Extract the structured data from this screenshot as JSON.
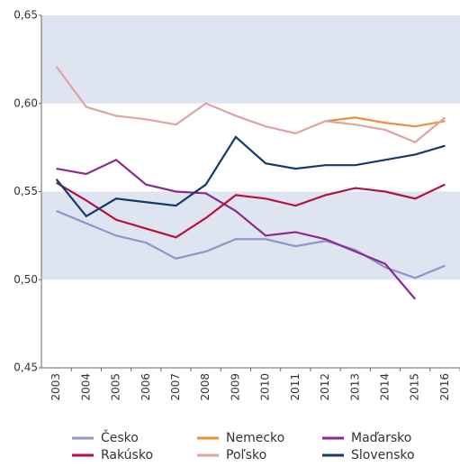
{
  "chart_data": {
    "type": "line",
    "categories": [
      "2003",
      "2004",
      "2005",
      "2006",
      "2007",
      "2008",
      "2009",
      "2010",
      "2011",
      "2012",
      "2013",
      "2014",
      "2015",
      "2016"
    ],
    "series": [
      {
        "name": "Česko",
        "color": "#8f97c9",
        "values": [
          0.539,
          0.532,
          0.525,
          0.521,
          0.512,
          0.516,
          0.523,
          0.523,
          0.519,
          0.522,
          0.517,
          0.507,
          0.501,
          0.508
        ]
      },
      {
        "name": "Nemecko",
        "color": "#e8913a",
        "values": [
          null,
          null,
          null,
          null,
          null,
          null,
          null,
          null,
          null,
          0.59,
          0.592,
          0.589,
          0.587,
          0.59
        ]
      },
      {
        "name": "Maďarsko",
        "color": "#8b2a8f",
        "values": [
          0.563,
          0.56,
          0.568,
          0.554,
          0.55,
          0.549,
          0.539,
          0.525,
          0.527,
          0.523,
          0.516,
          0.509,
          0.489,
          null
        ]
      },
      {
        "name": "Rakúsko",
        "color": "#b5123f",
        "values": [
          0.555,
          0.545,
          0.534,
          0.529,
          0.524,
          0.535,
          0.548,
          0.546,
          0.542,
          0.548,
          0.552,
          0.55,
          0.546,
          0.554
        ]
      },
      {
        "name": "Poľsko",
        "color": "#e0a3a3",
        "values": [
          0.621,
          0.598,
          0.593,
          0.591,
          0.588,
          0.6,
          0.593,
          0.587,
          0.583,
          0.59,
          0.588,
          0.585,
          0.578,
          0.592
        ]
      },
      {
        "name": "Slovensko",
        "color": "#143a6e",
        "values": [
          0.557,
          0.536,
          0.546,
          0.544,
          0.542,
          0.554,
          0.581,
          0.566,
          0.563,
          0.565,
          0.565,
          0.568,
          0.571,
          0.576
        ]
      }
    ],
    "ylim": [
      0.45,
      0.65
    ],
    "yticks": [
      {
        "value": 0.45,
        "label": "0,45"
      },
      {
        "value": 0.5,
        "label": "0,50"
      },
      {
        "value": 0.55,
        "label": "0,55"
      },
      {
        "value": 0.6,
        "label": "0,60"
      },
      {
        "value": 0.65,
        "label": "0,65"
      }
    ],
    "alternate_bands": true,
    "band_color": "#dfe4f1"
  }
}
